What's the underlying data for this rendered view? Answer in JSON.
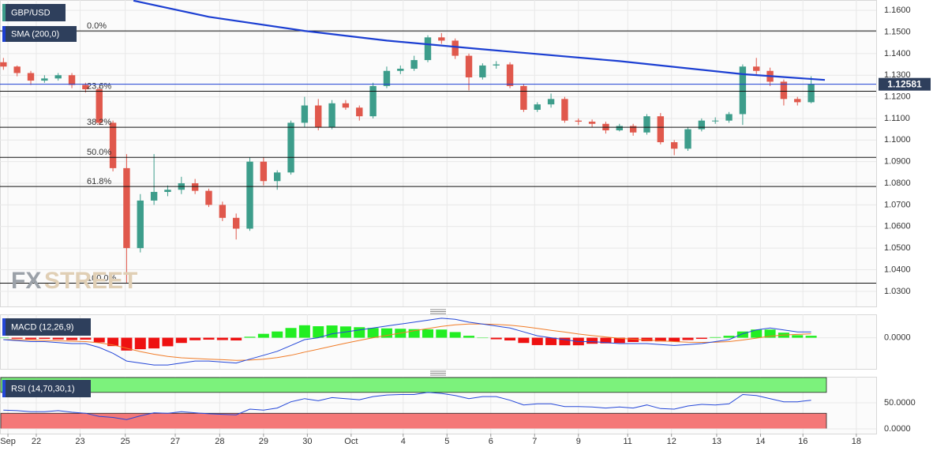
{
  "chart_data": [
    {
      "type": "candlestick",
      "title": "GBP/USD",
      "xlim": [
        -0.25,
        63.75
      ],
      "ylim": [
        1.023,
        1.1648
      ],
      "yticks": [
        {
          "value": 1.03,
          "label": "1.0300"
        },
        {
          "value": 1.04,
          "label": "1.0400"
        },
        {
          "value": 1.05,
          "label": "1.0500"
        },
        {
          "value": 1.06,
          "label": "1.0600"
        },
        {
          "value": 1.07,
          "label": "1.0700"
        },
        {
          "value": 1.08,
          "label": "1.0800"
        },
        {
          "value": 1.09,
          "label": "1.0900"
        },
        {
          "value": 1.1,
          "label": "1.1000"
        },
        {
          "value": 1.11,
          "label": "1.1100"
        },
        {
          "value": 1.12,
          "label": "1.1200"
        },
        {
          "value": 1.13,
          "label": "1.1300"
        },
        {
          "value": 1.14,
          "label": "1.1400"
        },
        {
          "value": 1.15,
          "label": "1.1500"
        },
        {
          "value": 1.16,
          "label": "1.1600"
        }
      ],
      "up_color": "#3d9d8b",
      "down_color": "#e0584c",
      "open": [
        1.136,
        1.134,
        1.131,
        1.1275,
        1.1285,
        1.13,
        1.1255,
        1.1235,
        1.108,
        1.087,
        1.05,
        1.072,
        1.076,
        1.077,
        1.08,
        1.0765,
        1.07,
        1.064,
        1.059,
        1.09,
        1.081,
        1.085,
        1.108,
        1.116,
        1.106,
        1.117,
        1.115,
        1.111,
        1.125,
        1.132,
        1.133,
        1.137,
        1.1475,
        1.146,
        1.139,
        1.129,
        1.1345,
        1.135,
        1.125,
        1.114,
        1.1165,
        1.119,
        1.109,
        1.1085,
        1.1075,
        1.1045,
        1.1065,
        1.1035,
        1.111,
        1.099,
        1.096,
        1.105,
        1.109,
        1.109,
        1.112,
        1.134,
        1.132,
        1.127,
        1.119,
        1.1175
      ],
      "high": [
        1.138,
        1.1345,
        1.132,
        1.13,
        1.131,
        1.131,
        1.1265,
        1.1245,
        1.109,
        1.0935,
        1.075,
        1.0935,
        1.079,
        1.083,
        1.082,
        1.0775,
        1.0715,
        1.066,
        1.092,
        1.092,
        1.086,
        1.109,
        1.12,
        1.119,
        1.1185,
        1.1185,
        1.116,
        1.1265,
        1.134,
        1.1345,
        1.139,
        1.1485,
        1.1495,
        1.147,
        1.14,
        1.1355,
        1.1365,
        1.136,
        1.126,
        1.1175,
        1.1215,
        1.12,
        1.11,
        1.1095,
        1.1085,
        1.1075,
        1.1075,
        1.112,
        1.1125,
        1.1,
        1.106,
        1.11,
        1.1105,
        1.113,
        1.135,
        1.138,
        1.1335,
        1.128,
        1.12,
        1.1295
      ],
      "low": [
        1.1325,
        1.1295,
        1.1255,
        1.1265,
        1.1275,
        1.124,
        1.122,
        1.107,
        1.0855,
        1.034,
        1.048,
        1.07,
        1.074,
        1.075,
        1.075,
        1.069,
        1.0625,
        1.054,
        1.058,
        1.079,
        1.077,
        1.084,
        1.106,
        1.1045,
        1.105,
        1.114,
        1.109,
        1.11,
        1.124,
        1.1305,
        1.132,
        1.136,
        1.1445,
        1.1375,
        1.123,
        1.128,
        1.133,
        1.124,
        1.113,
        1.113,
        1.115,
        1.108,
        1.107,
        1.106,
        1.103,
        1.104,
        1.102,
        1.1025,
        1.098,
        1.093,
        1.095,
        1.104,
        1.1075,
        1.108,
        1.107,
        1.1305,
        1.125,
        1.116,
        1.116,
        1.117
      ],
      "close": [
        1.134,
        1.131,
        1.1275,
        1.1285,
        1.13,
        1.1255,
        1.1235,
        1.108,
        1.087,
        1.05,
        1.072,
        1.076,
        1.077,
        1.08,
        1.0765,
        1.07,
        1.064,
        1.059,
        1.09,
        1.081,
        1.085,
        1.108,
        1.116,
        1.106,
        1.117,
        1.115,
        1.111,
        1.125,
        1.132,
        1.133,
        1.137,
        1.1475,
        1.146,
        1.139,
        1.129,
        1.1345,
        1.135,
        1.125,
        1.114,
        1.1165,
        1.119,
        1.109,
        1.1085,
        1.1075,
        1.1045,
        1.1065,
        1.1035,
        1.111,
        1.099,
        1.096,
        1.105,
        1.109,
        1.109,
        1.112,
        1.134,
        1.132,
        1.127,
        1.119,
        1.1175,
        1.1258
      ],
      "overlay": {
        "name": "SMA (200,0)",
        "color": "#1c3fd2",
        "x": [
          9.5,
          15,
          22,
          28,
          35,
          45,
          54,
          60
        ],
        "values": [
          1.1645,
          1.157,
          1.1505,
          1.146,
          1.142,
          1.1365,
          1.1305,
          1.1278
        ]
      },
      "last_price": 1.12581,
      "last_price_color": "#1c3fd2",
      "fib_levels": [
        {
          "label": "0.0%",
          "price": 1.1505
        },
        {
          "label": "23.6%",
          "price": 1.1226
        },
        {
          "label": "38.2%",
          "price": 1.1059
        },
        {
          "label": "50.0%",
          "price": 1.092
        },
        {
          "label": "61.8%",
          "price": 1.0785
        },
        {
          "label": "100.0%",
          "price": 1.0338
        }
      ],
      "watermark": [
        "FX",
        "STREET"
      ]
    },
    {
      "type": "macd",
      "title": "MACD (12,26,9)",
      "xlim": [
        -0.25,
        63.75
      ],
      "ylim": [
        -0.016,
        0.012
      ],
      "yticks": [
        {
          "value": 0,
          "label": "0.0000"
        }
      ],
      "macd": {
        "color": "#2447d8",
        "values": [
          -0.001,
          -0.0015,
          -0.002,
          -0.002,
          -0.0025,
          -0.003,
          -0.003,
          -0.005,
          -0.008,
          -0.012,
          -0.013,
          -0.014,
          -0.014,
          -0.013,
          -0.012,
          -0.012,
          -0.0125,
          -0.013,
          -0.011,
          -0.009,
          -0.007,
          -0.004,
          -0.001,
          0.0,
          0.002,
          0.003,
          0.004,
          0.005,
          0.006,
          0.007,
          0.008,
          0.009,
          0.01,
          0.0095,
          0.008,
          0.007,
          0.006,
          0.005,
          0.003,
          0.001,
          0.0,
          -0.001,
          -0.002,
          -0.002,
          -0.0025,
          -0.003,
          -0.003,
          -0.003,
          -0.0035,
          -0.004,
          -0.0035,
          -0.003,
          -0.002,
          -0.001,
          0.002,
          0.004,
          0.005,
          0.004,
          0.003,
          0.003
        ]
      },
      "signal": {
        "color": "#f07c28",
        "values": [
          -0.001,
          -0.001,
          -0.0012,
          -0.0014,
          -0.0016,
          -0.0018,
          -0.002,
          -0.0026,
          -0.0037,
          -0.0054,
          -0.0071,
          -0.0085,
          -0.0096,
          -0.0103,
          -0.0107,
          -0.011,
          -0.0113,
          -0.0116,
          -0.0115,
          -0.011,
          -0.0102,
          -0.009,
          -0.0074,
          -0.0059,
          -0.0043,
          -0.0028,
          -0.0014,
          0.0,
          0.0012,
          0.0024,
          0.0036,
          0.0047,
          0.0058,
          0.0066,
          0.007,
          0.007,
          0.0068,
          0.0064,
          0.0057,
          0.0048,
          0.0038,
          0.0029,
          0.0019,
          0.0011,
          0.0004,
          -0.0003,
          -0.0008,
          -0.0012,
          -0.0016,
          -0.002,
          -0.0023,
          -0.0024,
          -0.0023,
          -0.002,
          -0.0012,
          -0.0002,
          0.0008,
          0.0014,
          0.0017,
          0.002
        ]
      },
      "histogram": {
        "up_color": "#22ee22",
        "down_color": "#ee1111",
        "values": [
          0.0,
          -0.0005,
          -0.0008,
          -0.0006,
          -0.0009,
          -0.0012,
          -0.001,
          -0.0024,
          -0.0043,
          -0.0066,
          -0.0059,
          -0.0055,
          -0.0044,
          -0.0027,
          -0.0013,
          -0.001,
          -0.0012,
          -0.0014,
          0.0005,
          0.002,
          0.0032,
          0.005,
          0.0064,
          0.0059,
          0.0063,
          0.0058,
          0.0054,
          0.005,
          0.0048,
          0.0046,
          0.0044,
          0.0043,
          0.0042,
          0.0029,
          0.001,
          0.0,
          -0.0008,
          -0.0014,
          -0.0027,
          -0.0038,
          -0.0038,
          -0.0039,
          -0.0039,
          -0.0031,
          -0.0029,
          -0.0027,
          -0.0022,
          -0.0018,
          -0.0019,
          -0.002,
          -0.0012,
          -0.0006,
          0.0003,
          0.001,
          0.0032,
          0.0042,
          0.0042,
          0.0026,
          0.0013,
          0.001
        ]
      }
    },
    {
      "type": "rsi",
      "title": "RSI (14,70,30,1)",
      "xlim": [
        -0.25,
        63.75
      ],
      "ylim": [
        -9,
        100
      ],
      "yticks": [
        {
          "value": 0,
          "label": "0.0000"
        },
        {
          "value": 50,
          "label": "50.0000"
        }
      ],
      "overbought": 70,
      "oversold": 30,
      "overbought_color": "#7cf27c",
      "oversold_color": "#f47878",
      "line": {
        "color": "#2447d8",
        "values": [
          36,
          35,
          33,
          33,
          35,
          32,
          30,
          24,
          22,
          18,
          25,
          31,
          30,
          33,
          31,
          29,
          28,
          27,
          38,
          36,
          40,
          52,
          58,
          54,
          60,
          58,
          56,
          62,
          65,
          66,
          66,
          70,
          68,
          64,
          58,
          62,
          62,
          55,
          46,
          48,
          48,
          43,
          43,
          42,
          40,
          42,
          40,
          46,
          39,
          38,
          44,
          47,
          46,
          48,
          66,
          64,
          58,
          52,
          52,
          55
        ]
      },
      "xticks": [
        {
          "value": 0.33,
          "label": "Sep"
        },
        {
          "value": 2.4,
          "label": "22"
        },
        {
          "value": 5.6,
          "label": "23"
        },
        {
          "value": 8.9,
          "label": "25"
        },
        {
          "value": 12.55,
          "label": "27"
        },
        {
          "value": 15.8,
          "label": "28"
        },
        {
          "value": 19.0,
          "label": "29"
        },
        {
          "value": 22.2,
          "label": "30"
        },
        {
          "value": 25.4,
          "label": "Oct"
        },
        {
          "value": 29.2,
          "label": "4"
        },
        {
          "value": 32.4,
          "label": "5"
        },
        {
          "value": 35.6,
          "label": "6"
        },
        {
          "value": 38.8,
          "label": "7"
        },
        {
          "value": 42.0,
          "label": "9"
        },
        {
          "value": 45.6,
          "label": "11"
        },
        {
          "value": 48.8,
          "label": "12"
        },
        {
          "value": 52.1,
          "label": "13"
        },
        {
          "value": 55.3,
          "label": "14"
        },
        {
          "value": 58.4,
          "label": "16"
        },
        {
          "value": 62.3,
          "label": "18"
        }
      ]
    }
  ]
}
